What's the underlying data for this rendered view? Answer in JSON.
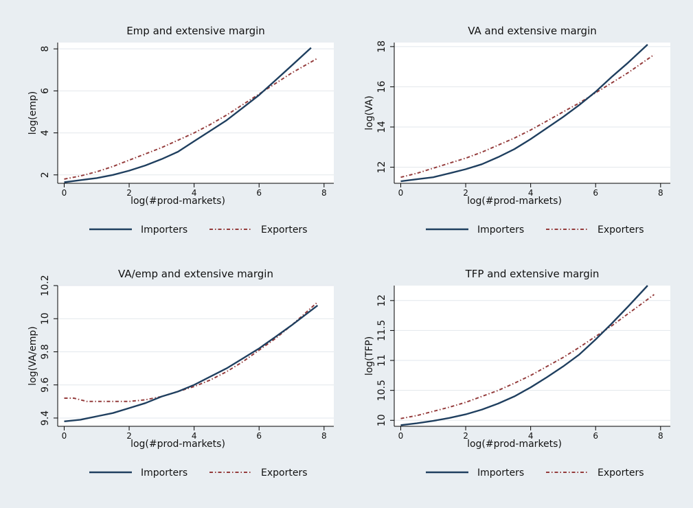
{
  "colors": {
    "background": "#e9eef2",
    "plot_background": "#ffffff",
    "grid": "#e2e7ec",
    "importers": "#1f3f5f",
    "exporters": "#943b3b"
  },
  "chart_data": [
    {
      "type": "line",
      "title": "Emp and extensive margin",
      "xlabel": "log(#prod-markets)",
      "ylabel": "log(emp)",
      "xlim": [
        -0.2,
        8.3
      ],
      "ylim": [
        1.6,
        8.3
      ],
      "xticks": [
        "0",
        "2",
        "4",
        "6",
        "8"
      ],
      "xtick_values": [
        0,
        2,
        4,
        6,
        8
      ],
      "yticks": [
        "2",
        "4",
        "6",
        "8"
      ],
      "ytick_values": [
        2,
        4,
        6,
        8
      ],
      "grid": true,
      "legend": "bottom",
      "series": [
        {
          "name": "Importers",
          "style": "solid",
          "x": [
            0,
            0.5,
            1,
            1.5,
            2,
            2.5,
            3,
            3.5,
            4,
            4.5,
            5,
            5.5,
            6,
            6.5,
            7,
            7.6
          ],
          "y": [
            1.65,
            1.75,
            1.85,
            2.0,
            2.2,
            2.45,
            2.75,
            3.1,
            3.6,
            4.1,
            4.6,
            5.2,
            5.8,
            6.5,
            7.2,
            8.05
          ]
        },
        {
          "name": "Exporters",
          "style": "dotted",
          "x": [
            0,
            0.5,
            1,
            1.5,
            2,
            2.5,
            3,
            3.5,
            4,
            4.5,
            5,
            5.5,
            6,
            6.5,
            7,
            7.8
          ],
          "y": [
            1.8,
            1.95,
            2.15,
            2.4,
            2.7,
            3.0,
            3.3,
            3.65,
            4.0,
            4.4,
            4.85,
            5.35,
            5.85,
            6.35,
            6.85,
            7.55
          ]
        }
      ]
    },
    {
      "type": "line",
      "title": "VA and extensive margin",
      "xlabel": "log(#prod-markets)",
      "ylabel": "log(VA)",
      "xlim": [
        -0.2,
        8.3
      ],
      "ylim": [
        11.2,
        18.2
      ],
      "xticks": [
        "0",
        "2",
        "4",
        "6",
        "8"
      ],
      "xtick_values": [
        0,
        2,
        4,
        6,
        8
      ],
      "yticks": [
        "12",
        "14",
        "16",
        "18"
      ],
      "ytick_values": [
        12,
        14,
        16,
        18
      ],
      "grid": true,
      "legend": "bottom",
      "series": [
        {
          "name": "Importers",
          "style": "solid",
          "x": [
            0,
            0.5,
            1,
            1.5,
            2,
            2.5,
            3,
            3.5,
            4,
            4.5,
            5,
            5.5,
            6,
            6.5,
            7,
            7.6
          ],
          "y": [
            11.3,
            11.4,
            11.5,
            11.7,
            11.9,
            12.15,
            12.5,
            12.9,
            13.4,
            13.95,
            14.5,
            15.1,
            15.75,
            16.5,
            17.2,
            18.1
          ]
        },
        {
          "name": "Exporters",
          "style": "dotted",
          "x": [
            0,
            0.5,
            1,
            1.5,
            2,
            2.5,
            3,
            3.5,
            4,
            4.5,
            5,
            5.5,
            6,
            6.5,
            7,
            7.8
          ],
          "y": [
            11.5,
            11.7,
            11.95,
            12.2,
            12.45,
            12.75,
            13.1,
            13.45,
            13.85,
            14.3,
            14.75,
            15.2,
            15.7,
            16.2,
            16.7,
            17.6
          ]
        }
      ]
    },
    {
      "type": "line",
      "title": "VA/emp and extensive margin",
      "xlabel": "log(#prod-markets)",
      "ylabel": "log(VA/emp)",
      "xlim": [
        -0.2,
        8.3
      ],
      "ylim": [
        9.35,
        10.2
      ],
      "xticks": [
        "0",
        "2",
        "4",
        "6",
        "8"
      ],
      "xtick_values": [
        0,
        2,
        4,
        6,
        8
      ],
      "yticks": [
        "9.4",
        "9.6",
        "9.8",
        "10",
        "10.2"
      ],
      "ytick_values": [
        9.4,
        9.6,
        9.8,
        10,
        10.2
      ],
      "grid": true,
      "legend": "bottom",
      "series": [
        {
          "name": "Importers",
          "style": "solid",
          "x": [
            0,
            0.5,
            1,
            1.5,
            2,
            2.5,
            3,
            3.5,
            4,
            4.5,
            5,
            5.5,
            6,
            6.5,
            7,
            7.8
          ],
          "y": [
            9.38,
            9.39,
            9.41,
            9.43,
            9.46,
            9.49,
            9.53,
            9.56,
            9.6,
            9.65,
            9.7,
            9.76,
            9.82,
            9.89,
            9.96,
            10.08
          ]
        },
        {
          "name": "Exporters",
          "style": "dotted",
          "x": [
            0,
            0.3,
            0.7,
            1,
            1.5,
            2,
            2.5,
            3,
            3.5,
            4,
            4.5,
            5,
            5.5,
            6,
            6.5,
            7,
            7.8
          ],
          "y": [
            9.52,
            9.52,
            9.5,
            9.5,
            9.5,
            9.5,
            9.51,
            9.53,
            9.56,
            9.59,
            9.63,
            9.68,
            9.74,
            9.81,
            9.88,
            9.96,
            10.1
          ]
        }
      ]
    },
    {
      "type": "line",
      "title": "TFP and extensive margin",
      "xlabel": "log(#prod-markets)",
      "ylabel": "log(TFP)",
      "xlim": [
        -0.2,
        8.3
      ],
      "ylim": [
        9.9,
        12.25
      ],
      "xticks": [
        "0",
        "2",
        "4",
        "6",
        "8"
      ],
      "xtick_values": [
        0,
        2,
        4,
        6,
        8
      ],
      "yticks": [
        "10",
        "10.5",
        "11",
        "11.5",
        "12"
      ],
      "ytick_values": [
        10,
        10.5,
        11,
        11.5,
        12
      ],
      "grid": true,
      "legend": "bottom",
      "series": [
        {
          "name": "Importers",
          "style": "solid",
          "x": [
            0,
            0.5,
            1,
            1.5,
            2,
            2.5,
            3,
            3.5,
            4,
            4.5,
            5,
            5.5,
            6,
            6.5,
            7,
            7.6
          ],
          "y": [
            9.92,
            9.95,
            9.99,
            10.04,
            10.1,
            10.18,
            10.28,
            10.4,
            10.55,
            10.72,
            10.9,
            11.1,
            11.35,
            11.62,
            11.9,
            12.25
          ]
        },
        {
          "name": "Exporters",
          "style": "dotted",
          "x": [
            0,
            0.5,
            1,
            1.5,
            2,
            2.5,
            3,
            3.5,
            4,
            4.5,
            5,
            5.5,
            6,
            6.5,
            7,
            7.8
          ],
          "y": [
            10.03,
            10.08,
            10.15,
            10.22,
            10.3,
            10.4,
            10.5,
            10.62,
            10.75,
            10.9,
            11.05,
            11.22,
            11.4,
            11.58,
            11.78,
            12.1
          ]
        }
      ]
    }
  ]
}
